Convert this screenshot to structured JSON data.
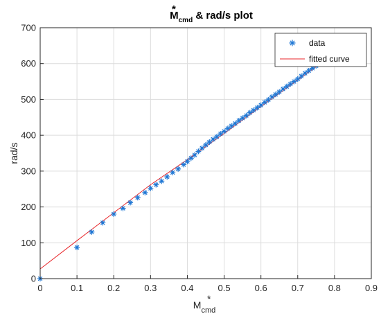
{
  "chart_data": {
    "type": "scatter",
    "title": {
      "symbol": "M",
      "superscript": "*",
      "subscript": "cmd",
      "suffix": " & rad/s plot"
    },
    "xlabel": {
      "symbol": "M",
      "superscript": "*",
      "subscript": "cmd"
    },
    "ylabel": "rad/s",
    "xlim": [
      0,
      0.9
    ],
    "ylim": [
      0,
      700
    ],
    "xticks": [
      "0",
      "0.1",
      "0.2",
      "0.3",
      "0.4",
      "0.5",
      "0.6",
      "0.7",
      "0.8",
      "0.9"
    ],
    "yticks": [
      "0",
      "100",
      "200",
      "300",
      "400",
      "500",
      "600",
      "700"
    ],
    "grid": true,
    "legend_position": "top-right",
    "colors": {
      "data": "#1f77d4",
      "fit": "#e8262a",
      "axis": "#262626",
      "grid": "#dcdcdc"
    },
    "series": [
      {
        "name": "data",
        "kind": "marker-star",
        "x": [
          0,
          0.1,
          0.14,
          0.17,
          0.2,
          0.225,
          0.245,
          0.265,
          0.285,
          0.3,
          0.315,
          0.33,
          0.345,
          0.36,
          0.375,
          0.39,
          0.4,
          0.41,
          0.42,
          0.43,
          0.44,
          0.45,
          0.46,
          0.47,
          0.48,
          0.49,
          0.5,
          0.51,
          0.52,
          0.53,
          0.54,
          0.55,
          0.56,
          0.57,
          0.58,
          0.59,
          0.6,
          0.61,
          0.62,
          0.63,
          0.64,
          0.65,
          0.66,
          0.67,
          0.68,
          0.69,
          0.7,
          0.71,
          0.72,
          0.73,
          0.74,
          0.75,
          0.76
        ],
        "y": [
          0,
          87,
          130,
          156,
          180,
          196,
          212,
          226,
          240,
          252,
          262,
          272,
          284,
          296,
          306,
          318,
          327,
          336,
          345,
          355,
          364,
          373,
          381,
          389,
          396,
          404,
          411,
          419,
          426,
          433,
          441,
          448,
          455,
          463,
          470,
          477,
          484,
          492,
          499,
          507,
          514,
          521,
          529,
          536,
          543,
          550,
          557,
          565,
          573,
          580,
          587,
          594,
          601
        ]
      },
      {
        "name": "fitted curve",
        "kind": "line",
        "x": [
          0,
          0.1,
          0.2,
          0.3,
          0.4,
          0.5,
          0.6,
          0.7,
          0.77
        ],
        "y": [
          27,
          106,
          184,
          262,
          332,
          405,
          480,
          554,
          606
        ]
      }
    ]
  }
}
